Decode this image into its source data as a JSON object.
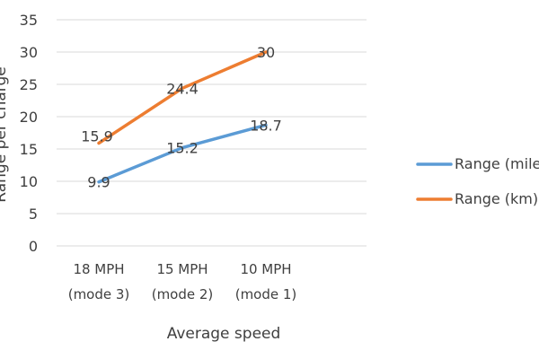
{
  "chart_data": {
    "type": "line",
    "title": "",
    "xlabel": "Average speed",
    "ylabel": "Range per charge",
    "ylim": [
      0,
      35
    ],
    "yticks": [
      0,
      5,
      10,
      15,
      20,
      25,
      30,
      35
    ],
    "grid": true,
    "legend_position": "right",
    "categories": [
      [
        "18 MPH",
        "(mode 3)"
      ],
      [
        "15 MPH",
        "(mode 2)"
      ],
      [
        "10 MPH",
        "(mode 1)"
      ]
    ],
    "series": [
      {
        "name": "Range (miles)",
        "values": [
          9.9,
          15.2,
          18.7
        ],
        "labels": [
          "9.9",
          "15.2",
          "18.7"
        ],
        "color": "#5B9BD5"
      },
      {
        "name": "Range (km)",
        "values": [
          15.9,
          24.4,
          30
        ],
        "labels": [
          "15.9",
          "24.4",
          "30"
        ],
        "color": "#ED7D31"
      }
    ]
  }
}
